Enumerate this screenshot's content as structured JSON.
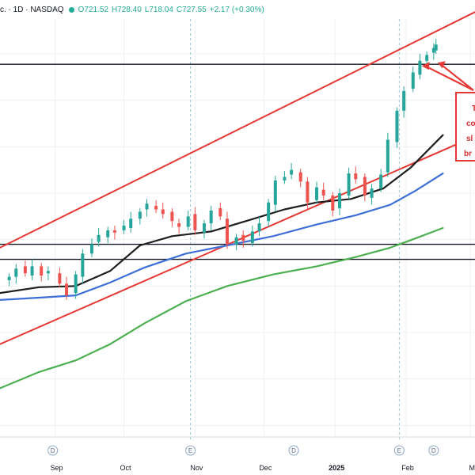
{
  "header": {
    "symbol": "c. · 1D · NASDAQ",
    "open": "O721.52",
    "high": "H728.40",
    "low": "L718.04",
    "close": "C727.55",
    "change": "+2.17 (+0.30%)"
  },
  "colors": {
    "up": "#26a69a",
    "down": "#ef5350",
    "channel": "#e53935",
    "ma_black": "#1e1e1e",
    "ma_blue": "#3d6fd6",
    "ma_green": "#4caf50",
    "horizontal": "#131722",
    "event_line": "#9ec6d6"
  },
  "annotation": {
    "lines": [
      "T",
      "co",
      "sl",
      "br"
    ]
  },
  "event_markers": [
    {
      "label": "D",
      "date": "2024-08-31"
    },
    {
      "label": "E",
      "date": "2024-10-30"
    },
    {
      "label": "D",
      "date": "2024-12-14"
    },
    {
      "label": "E",
      "date": "2025-01-29"
    },
    {
      "label": "D",
      "date": "2025-02-13"
    }
  ],
  "chart_data": {
    "type": "candlestick",
    "x_axis": {
      "ticks": [
        {
          "label": "Sep",
          "date": "2024-09-01"
        },
        {
          "label": "Oct",
          "date": "2024-10-01"
        },
        {
          "label": "Nov",
          "date": "2024-11-01"
        },
        {
          "label": "Dec",
          "date": "2024-12-01"
        },
        {
          "label": "2025",
          "date": "2025-01-01",
          "bold": true
        },
        {
          "label": "Feb",
          "date": "2025-02-01"
        },
        {
          "label": "M",
          "date": "2025-03-01"
        }
      ],
      "range": [
        "2024-08-08",
        "2025-03-03"
      ]
    },
    "y_range": [
      390,
      750
    ],
    "series": [
      {
        "kind": "candles",
        "note": "daily OHLC, closes read approximately from chart",
        "closes": [
          [
            "2024-08-12",
            528
          ],
          [
            "2024-08-15",
            535
          ],
          [
            "2024-08-19",
            531
          ],
          [
            "2024-08-22",
            537
          ],
          [
            "2024-08-26",
            529
          ],
          [
            "2024-08-29",
            533
          ],
          [
            "2024-09-03",
            522
          ],
          [
            "2024-09-06",
            512
          ],
          [
            "2024-09-10",
            530
          ],
          [
            "2024-09-13",
            548
          ],
          [
            "2024-09-17",
            556
          ],
          [
            "2024-09-20",
            564
          ],
          [
            "2024-09-24",
            568
          ],
          [
            "2024-09-27",
            566
          ],
          [
            "2024-10-01",
            572
          ],
          [
            "2024-10-04",
            578
          ],
          [
            "2024-10-08",
            584
          ],
          [
            "2024-10-11",
            591
          ],
          [
            "2024-10-15",
            586
          ],
          [
            "2024-10-18",
            582
          ],
          [
            "2024-10-22",
            576
          ],
          [
            "2024-10-25",
            571
          ],
          [
            "2024-10-29",
            580
          ],
          [
            "2024-11-01",
            568
          ],
          [
            "2024-11-05",
            574
          ],
          [
            "2024-11-08",
            585
          ],
          [
            "2024-11-12",
            580
          ],
          [
            "2024-11-15",
            556
          ],
          [
            "2024-11-19",
            562
          ],
          [
            "2024-11-22",
            559
          ],
          [
            "2024-11-26",
            567
          ],
          [
            "2024-11-29",
            574
          ],
          [
            "2024-12-03",
            592
          ],
          [
            "2024-12-06",
            611
          ],
          [
            "2024-12-10",
            614
          ],
          [
            "2024-12-13",
            620
          ],
          [
            "2024-12-17",
            610
          ],
          [
            "2024-12-20",
            592
          ],
          [
            "2024-12-24",
            605
          ],
          [
            "2024-12-27",
            598
          ],
          [
            "2024-12-31",
            585
          ],
          [
            "2025-01-03",
            600
          ],
          [
            "2025-01-07",
            617
          ],
          [
            "2025-01-10",
            612
          ],
          [
            "2025-01-14",
            598
          ],
          [
            "2025-01-17",
            604
          ],
          [
            "2025-01-21",
            616
          ],
          [
            "2025-01-24",
            646
          ],
          [
            "2025-01-28",
            671
          ],
          [
            "2025-01-31",
            688
          ],
          [
            "2025-02-04",
            704
          ],
          [
            "2025-02-07",
            714
          ],
          [
            "2025-02-10",
            719
          ],
          [
            "2025-02-13",
            725
          ],
          [
            "2025-02-14",
            728
          ]
        ]
      },
      {
        "kind": "line",
        "color_key": "ma_black",
        "points": [
          [
            "2024-08-08",
            514
          ],
          [
            "2024-08-25",
            519
          ],
          [
            "2024-09-10",
            520
          ],
          [
            "2024-09-25",
            533
          ],
          [
            "2024-10-08",
            555
          ],
          [
            "2024-10-22",
            563
          ],
          [
            "2024-11-08",
            567
          ],
          [
            "2024-11-25",
            577
          ],
          [
            "2024-12-10",
            586
          ],
          [
            "2024-12-24",
            592
          ],
          [
            "2025-01-08",
            595
          ],
          [
            "2025-01-22",
            604
          ],
          [
            "2025-02-03",
            622
          ],
          [
            "2025-02-17",
            650
          ]
        ]
      },
      {
        "kind": "line",
        "color_key": "ma_blue",
        "points": [
          [
            "2024-08-08",
            508
          ],
          [
            "2024-08-25",
            510
          ],
          [
            "2024-09-10",
            512
          ],
          [
            "2024-09-25",
            523
          ],
          [
            "2024-10-10",
            536
          ],
          [
            "2024-10-28",
            548
          ],
          [
            "2024-11-15",
            555
          ],
          [
            "2024-12-05",
            563
          ],
          [
            "2024-12-24",
            573
          ],
          [
            "2025-01-10",
            581
          ],
          [
            "2025-01-25",
            590
          ],
          [
            "2025-02-05",
            602
          ],
          [
            "2025-02-17",
            617
          ]
        ]
      },
      {
        "kind": "line",
        "color_key": "ma_green",
        "points": [
          [
            "2024-08-08",
            432
          ],
          [
            "2024-08-25",
            446
          ],
          [
            "2024-09-10",
            456
          ],
          [
            "2024-09-25",
            470
          ],
          [
            "2024-10-10",
            488
          ],
          [
            "2024-10-28",
            507
          ],
          [
            "2024-11-15",
            520
          ],
          [
            "2024-12-05",
            530
          ],
          [
            "2024-12-24",
            537
          ],
          [
            "2025-01-10",
            545
          ],
          [
            "2025-01-25",
            553
          ],
          [
            "2025-02-05",
            561
          ],
          [
            "2025-02-17",
            570
          ]
        ]
      },
      {
        "kind": "line",
        "color_key": "channel",
        "points": [
          [
            "2024-08-08",
            553
          ],
          [
            "2025-03-03",
            756
          ]
        ]
      },
      {
        "kind": "line",
        "color_key": "channel",
        "points": [
          [
            "2024-08-08",
            470
          ],
          [
            "2025-03-03",
            649
          ]
        ]
      },
      {
        "kind": "hline",
        "color_key": "horizontal",
        "y": 711
      },
      {
        "kind": "hline",
        "color_key": "horizontal",
        "y": 556
      },
      {
        "kind": "hline",
        "color_key": "horizontal",
        "y": 543
      }
    ]
  }
}
